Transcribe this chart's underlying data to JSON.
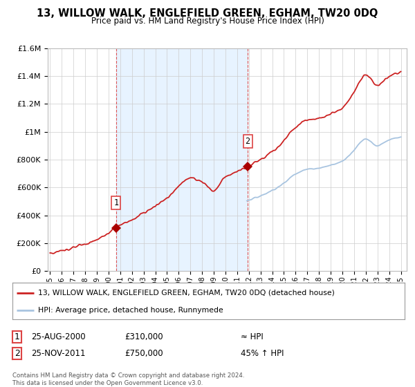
{
  "title": "13, WILLOW WALK, ENGLEFIELD GREEN, EGHAM, TW20 0DQ",
  "subtitle": "Price paid vs. HM Land Registry's House Price Index (HPI)",
  "ylim": [
    0,
    1600000
  ],
  "yticks": [
    0,
    200000,
    400000,
    600000,
    800000,
    1000000,
    1200000,
    1400000,
    1600000
  ],
  "sale1_year": 2000.65,
  "sale1_price": 310000,
  "sale2_year": 2011.9,
  "sale2_price": 750000,
  "legend_line1": "13, WILLOW WALK, ENGLEFIELD GREEN, EGHAM, TW20 0DQ (detached house)",
  "legend_line2": "HPI: Average price, detached house, Runnymede",
  "table_row1_date": "25-AUG-2000",
  "table_row1_price": "£310,000",
  "table_row1_hpi": "≈ HPI",
  "table_row2_date": "25-NOV-2011",
  "table_row2_price": "£750,000",
  "table_row2_hpi": "45% ↑ HPI",
  "footer": "Contains HM Land Registry data © Crown copyright and database right 2024.\nThis data is licensed under the Open Government Licence v3.0.",
  "hpi_color": "#a8c4e0",
  "prop_color": "#cc2222",
  "marker_color": "#aa0000",
  "vline_color": "#dd4444",
  "shade_color": "#ddeeff",
  "bg_color": "#ffffff",
  "grid_color": "#cccccc"
}
